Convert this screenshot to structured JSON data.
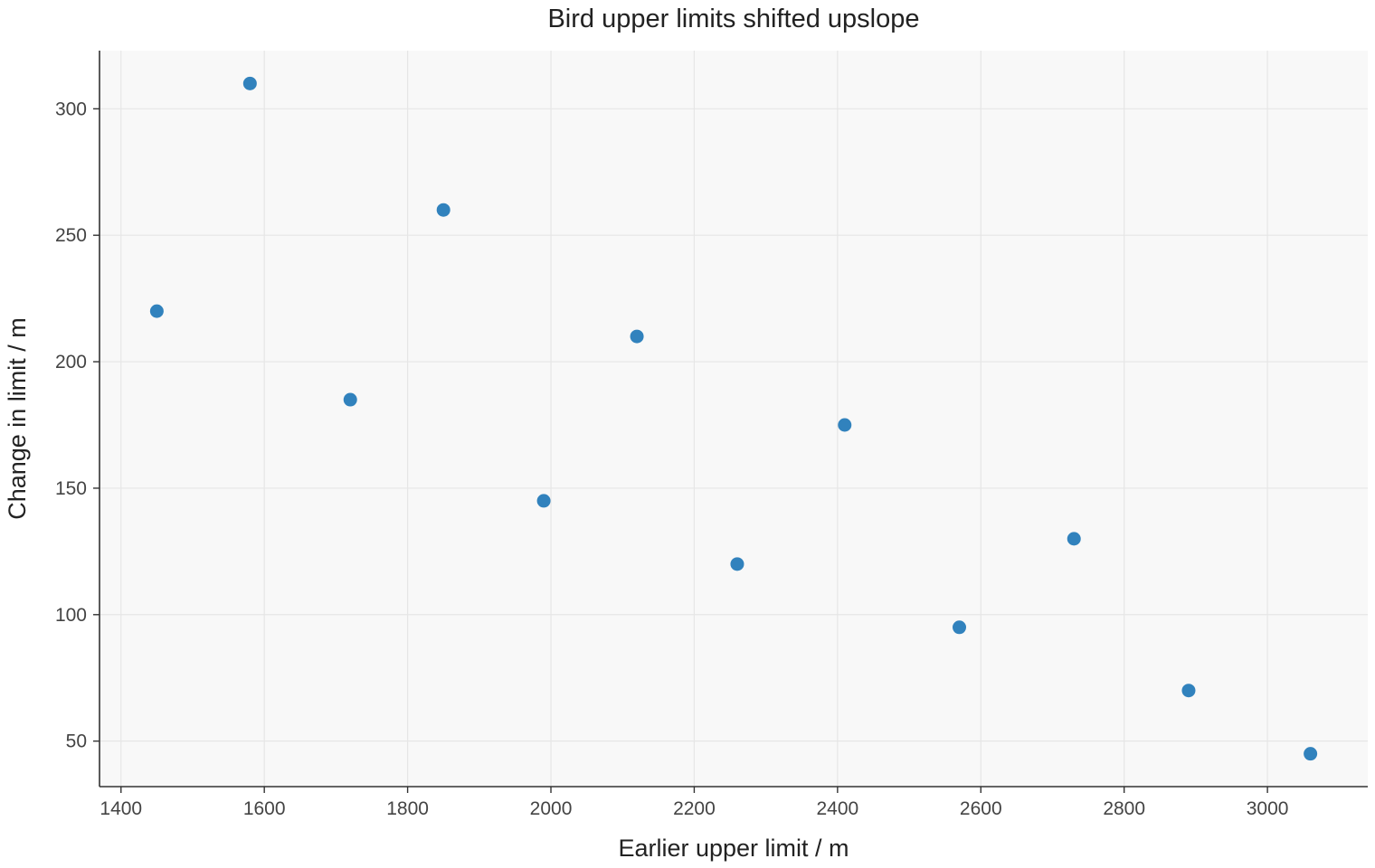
{
  "chart_data": {
    "type": "scatter",
    "title": "Bird upper limits shifted upslope",
    "xlabel": "Earlier upper limit / m",
    "ylabel": "Change in limit / m",
    "xlim": [
      1370,
      3140
    ],
    "ylim": [
      32,
      323
    ],
    "xticks": [
      1400,
      1600,
      1800,
      2000,
      2200,
      2400,
      2600,
      2800,
      3000
    ],
    "yticks": [
      50,
      100,
      150,
      200,
      250,
      300
    ],
    "grid": true,
    "legend": "none",
    "colors": {
      "point": "#3182bd",
      "plot_background": "#f8f8f8"
    },
    "series": [
      {
        "x": [
          1450,
          1580,
          1720,
          1850,
          1990,
          2120,
          2260,
          2410,
          2570,
          2730,
          2890,
          3060
        ],
        "y": [
          220,
          310,
          185,
          260,
          145,
          210,
          120,
          175,
          95,
          130,
          70,
          45
        ]
      }
    ]
  }
}
